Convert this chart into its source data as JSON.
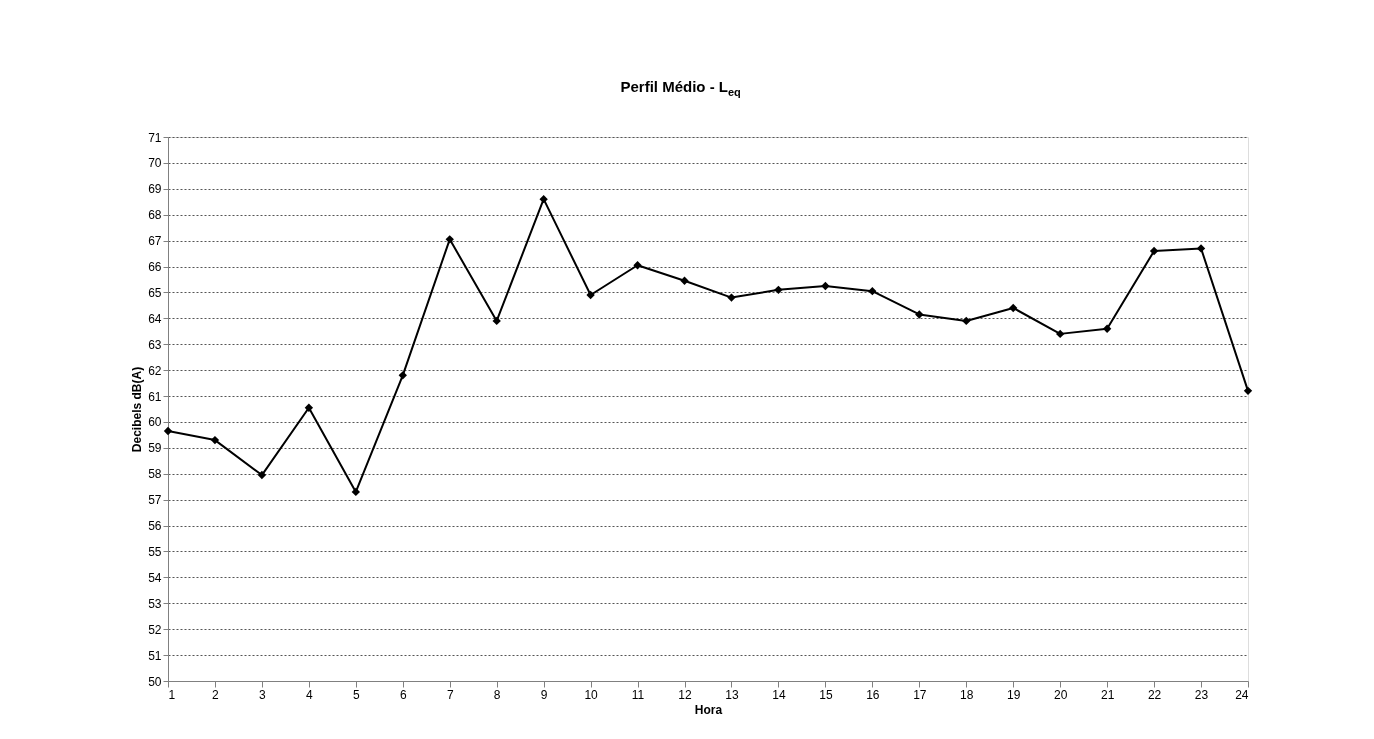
{
  "chart_data": {
    "type": "line",
    "title": "Perfil Médio - L$_{eq}$",
    "xlabel": "Hora",
    "ylabel": "Decibels dB(A)",
    "x": [
      1,
      2,
      3,
      4,
      5,
      6,
      7,
      8,
      9,
      10,
      11,
      12,
      13,
      14,
      15,
      16,
      17,
      18,
      19,
      20,
      21,
      22,
      23,
      24
    ],
    "series": [
      {
        "color": "#000000",
        "values": [
          59.65,
          59.3,
          57.95,
          60.55,
          57.3,
          61.8,
          67.05,
          63.9,
          68.6,
          64.9,
          66.05,
          65.45,
          64.8,
          65.1,
          65.25,
          65.05,
          64.15,
          63.9,
          64.4,
          63.4,
          63.6,
          66.6,
          66.7,
          61.2
        ]
      }
    ],
    "xlim": [
      1,
      24
    ],
    "xticks": [
      1,
      2,
      3,
      4,
      5,
      6,
      7,
      8,
      9,
      10,
      11,
      12,
      13,
      14,
      15,
      16,
      17,
      18,
      19,
      20,
      21,
      22,
      23,
      24
    ],
    "ylim": [
      50,
      71
    ],
    "yticks": [
      50,
      51,
      52,
      53,
      54,
      55,
      56,
      57,
      58,
      59,
      60,
      61,
      62,
      63,
      64,
      65,
      66,
      67,
      68,
      69,
      70,
      71
    ],
    "grid": "y",
    "marker": "diamond",
    "line_style": "solid"
  }
}
